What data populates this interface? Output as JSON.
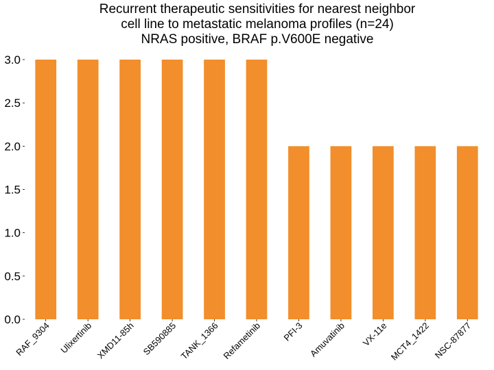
{
  "chart_data": {
    "type": "bar",
    "title": [
      "Recurrent therapeutic sensitivities for nearest neighbor",
      "cell line to metastatic melanoma profiles (n=24)",
      "NRAS positive, BRAF p.V600E negative"
    ],
    "categories": [
      "RAF_9304",
      "Ulixertinib",
      "XMD11-85h",
      "SB590885",
      "TANK_1366",
      "Refametinib",
      "PFI-3",
      "Amuvatinib",
      "VX-11e",
      "MCT4_1422",
      "NSC-87877"
    ],
    "values": [
      3,
      3,
      3,
      3,
      3,
      3,
      2,
      2,
      2,
      2,
      2
    ],
    "yticks": [
      "0.0",
      "0.5",
      "1.0",
      "1.5",
      "2.0",
      "2.5",
      "3.0"
    ],
    "ylim": [
      0,
      3
    ],
    "xlabel": "",
    "ylabel": "",
    "grid": false,
    "bar_color": "#f28e2b"
  }
}
